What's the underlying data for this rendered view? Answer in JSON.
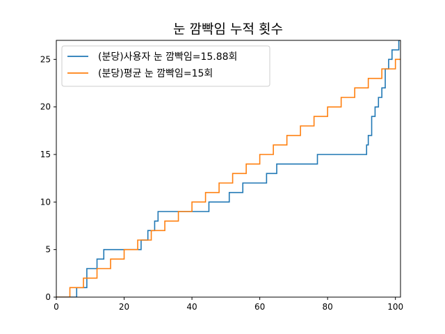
{
  "chart_data": {
    "type": "line",
    "step": true,
    "title": "눈 깜빡임 누적 횟수",
    "xlabel": "",
    "ylabel": "",
    "xlim": [
      0,
      101.5
    ],
    "ylim": [
      0,
      27
    ],
    "xticks": [
      0,
      20,
      40,
      60,
      80,
      100
    ],
    "yticks": [
      0,
      5,
      10,
      15,
      20,
      25
    ],
    "grid": false,
    "legend_position": "top-left",
    "series": [
      {
        "name": "(분당)사용자 눈 깜빡임=15.88회",
        "color": "#1f77b4",
        "x": [
          0,
          6,
          9,
          12,
          14,
          25,
          27,
          29,
          30,
          45,
          51,
          55,
          62,
          65,
          77,
          91.5,
          92,
          93,
          94,
          95,
          96,
          97,
          98,
          99,
          100,
          101
        ],
        "y": [
          0,
          1,
          3,
          4,
          5,
          6,
          7,
          8,
          9,
          10,
          11,
          12,
          13,
          14,
          15,
          16,
          17,
          19,
          20,
          21,
          22,
          24,
          25,
          26,
          26,
          27
        ]
      },
      {
        "name": "(분당)평균 눈 깜빡임=15회",
        "color": "#ff7f0e",
        "x": [
          0,
          4,
          8,
          12,
          16,
          20,
          24,
          28,
          32,
          36,
          40,
          44,
          48,
          52,
          56,
          60,
          64,
          68,
          72,
          76,
          80,
          84,
          88,
          92,
          96,
          100
        ],
        "y": [
          0,
          1,
          2,
          3,
          4,
          5,
          6,
          7,
          8,
          9,
          10,
          11,
          12,
          13,
          14,
          15,
          16,
          17,
          18,
          19,
          20,
          21,
          22,
          23,
          24,
          25
        ]
      }
    ]
  }
}
